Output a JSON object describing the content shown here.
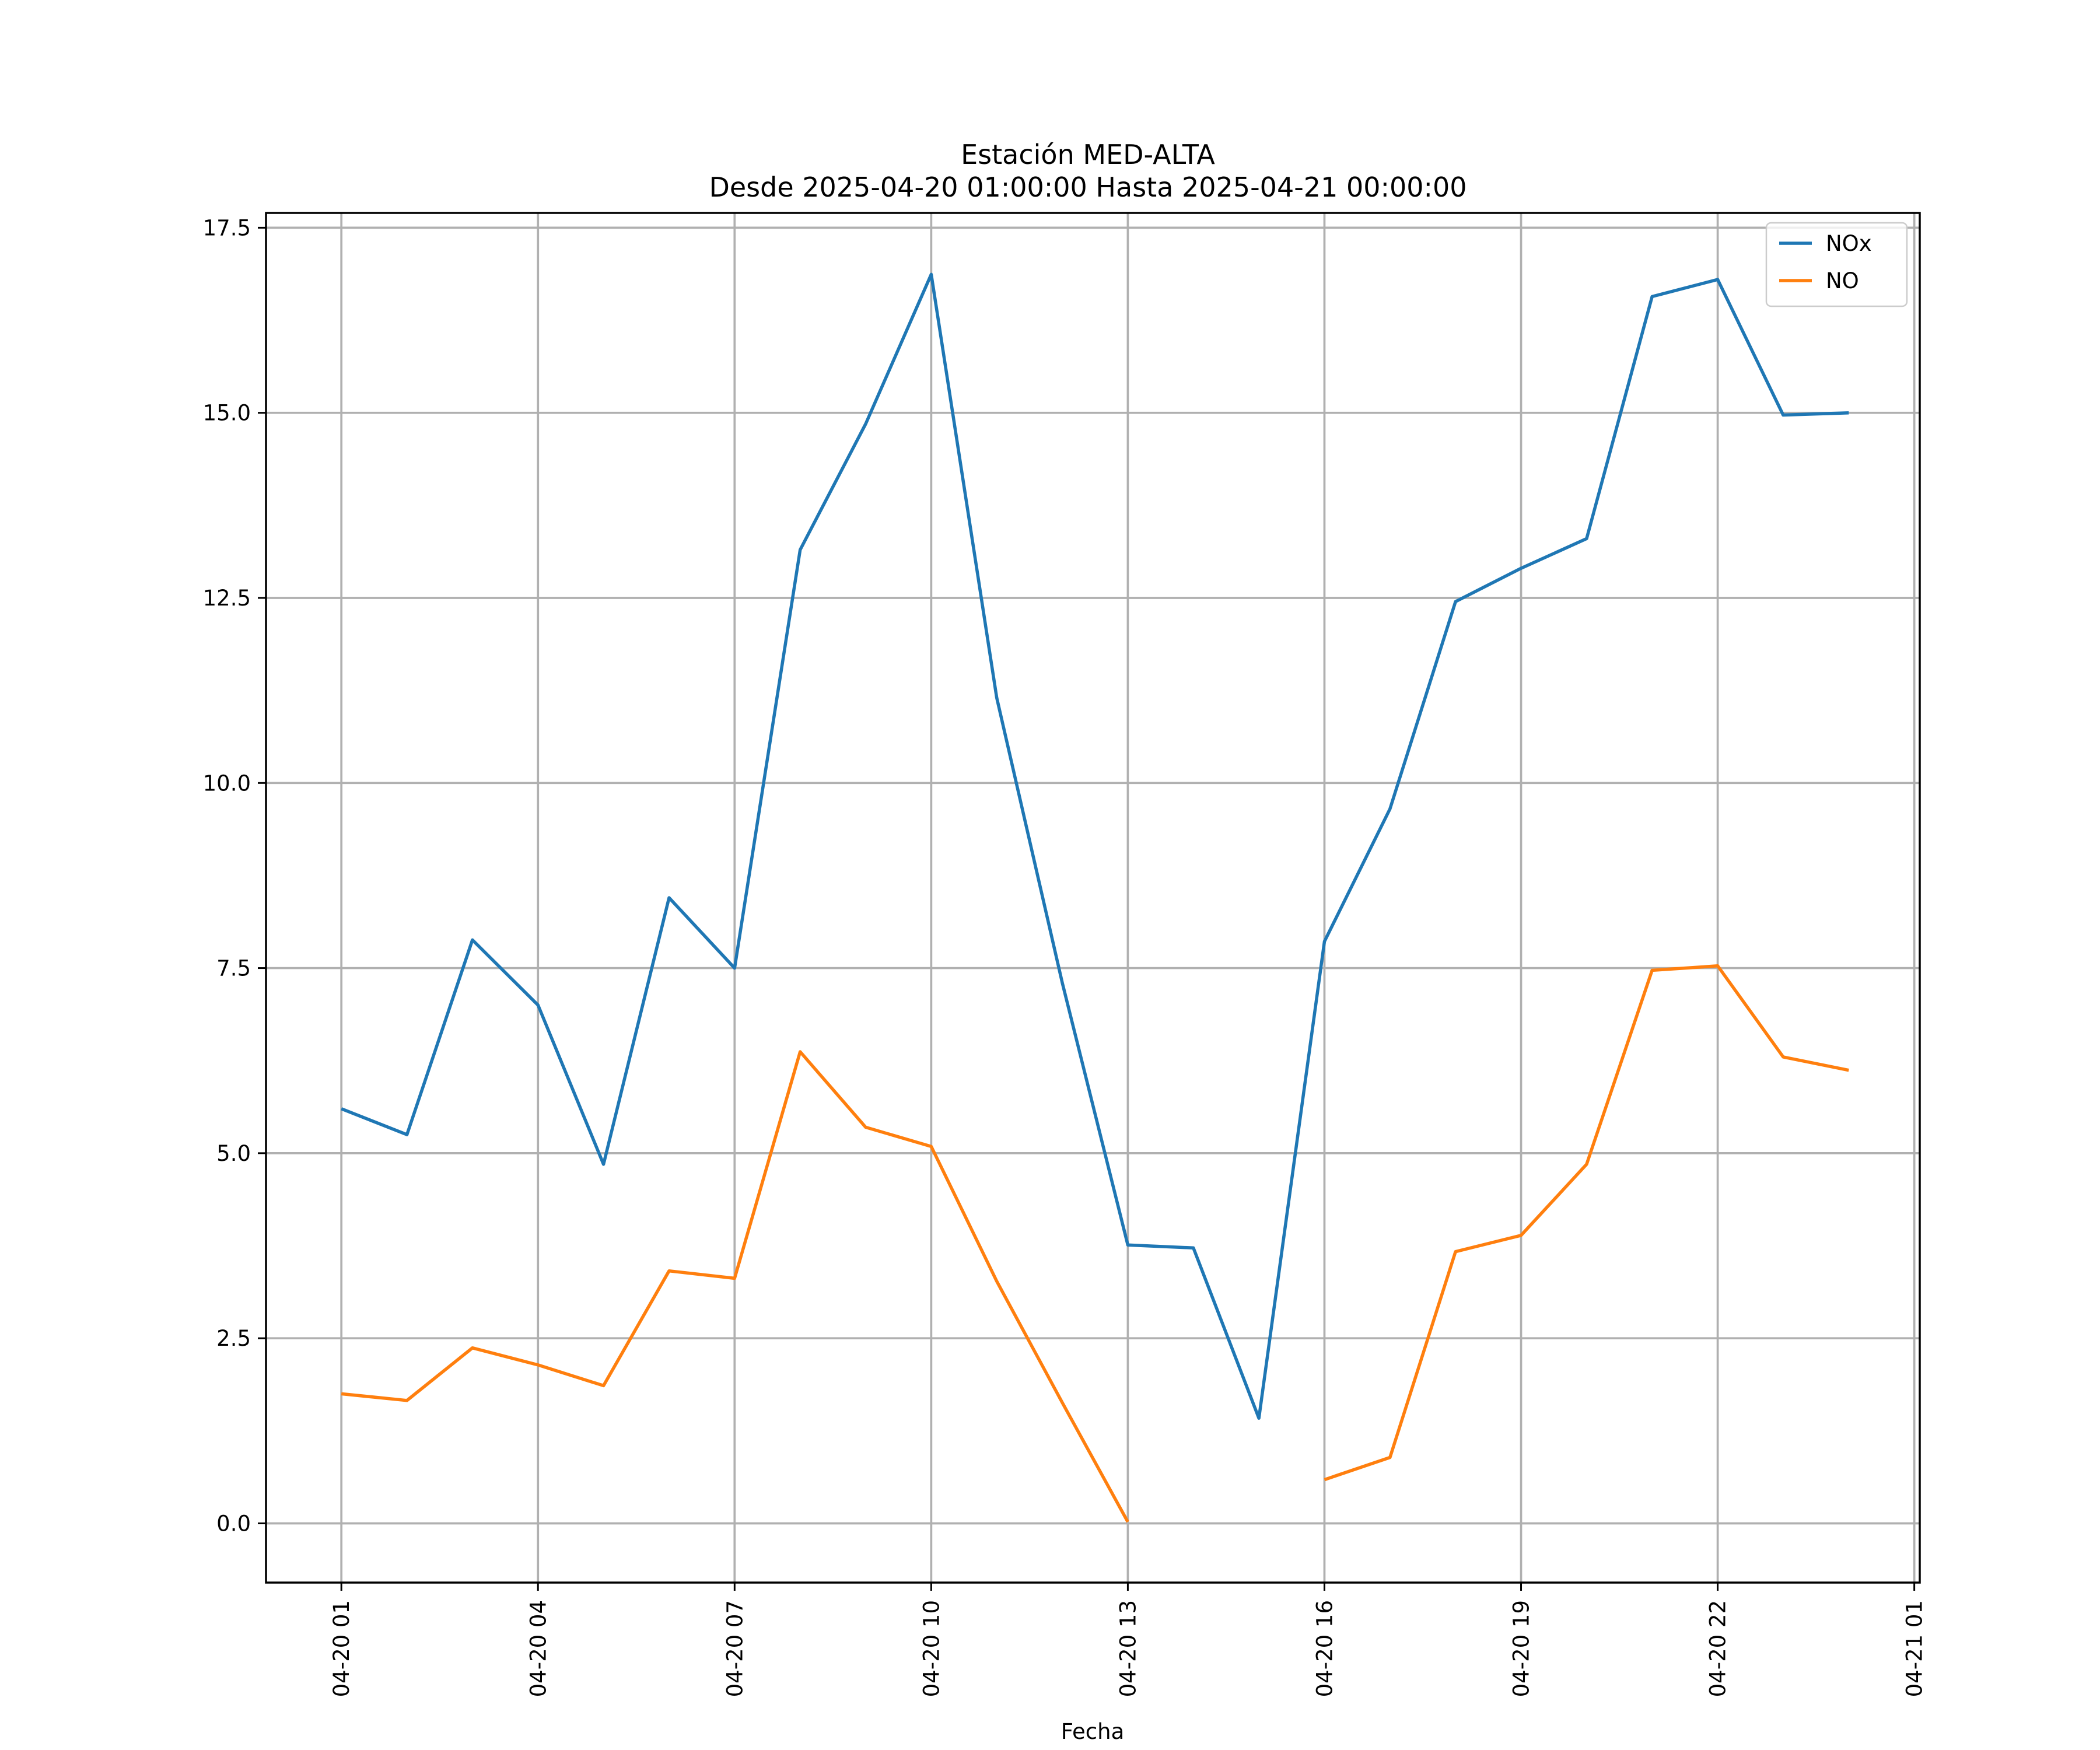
{
  "chart_data": {
    "type": "line",
    "title": "Estación MED-ALTA",
    "subtitle": "Desde 2025-04-20 01:00:00 Hasta 2025-04-21 00:00:00",
    "xlabel": "Fecha",
    "ylabel": "",
    "x": [
      "2025-04-20 01:00",
      "2025-04-20 02:00",
      "2025-04-20 03:00",
      "2025-04-20 04:00",
      "2025-04-20 05:00",
      "2025-04-20 06:00",
      "2025-04-20 07:00",
      "2025-04-20 08:00",
      "2025-04-20 09:00",
      "2025-04-20 10:00",
      "2025-04-20 11:00",
      "2025-04-20 12:00",
      "2025-04-20 13:00",
      "2025-04-20 14:00",
      "2025-04-20 15:00",
      "2025-04-20 16:00",
      "2025-04-20 17:00",
      "2025-04-20 18:00",
      "2025-04-20 19:00",
      "2025-04-20 20:00",
      "2025-04-20 21:00",
      "2025-04-20 22:00",
      "2025-04-20 23:00",
      "2025-04-21 00:00"
    ],
    "xlim": [
      "2025-04-19 23:51",
      "2025-04-21 01:05"
    ],
    "ylim": [
      -0.8,
      17.7
    ],
    "x_ticks": [
      "2025-04-20 01:00",
      "2025-04-20 04:00",
      "2025-04-20 07:00",
      "2025-04-20 10:00",
      "2025-04-20 13:00",
      "2025-04-20 16:00",
      "2025-04-20 19:00",
      "2025-04-20 22:00",
      "2025-04-21 01:00"
    ],
    "x_tick_labels": [
      "04-20 01",
      "04-20 04",
      "04-20 07",
      "04-20 10",
      "04-20 13",
      "04-20 16",
      "04-20 19",
      "04-20 22",
      "04-21 01"
    ],
    "y_ticks": [
      0.0,
      2.5,
      5.0,
      7.5,
      10.0,
      12.5,
      15.0,
      17.5
    ],
    "y_tick_labels": [
      "0.0",
      "2.5",
      "5.0",
      "7.5",
      "10.0",
      "12.5",
      "15.0",
      "17.5"
    ],
    "grid": true,
    "legend": "top-right",
    "series": [
      {
        "name": "NOx",
        "color": "#1f77b4",
        "values": [
          5.6,
          5.25,
          7.88,
          7.0,
          4.85,
          8.45,
          7.5,
          13.15,
          14.85,
          16.87,
          11.15,
          7.3,
          3.76,
          3.72,
          1.42,
          7.86,
          9.65,
          12.45,
          12.9,
          13.3,
          16.57,
          16.8,
          14.97,
          15.0
        ]
      },
      {
        "name": "NO",
        "color": "#ff7f0e",
        "values": [
          1.75,
          1.66,
          2.37,
          2.14,
          1.86,
          3.41,
          3.31,
          6.37,
          5.35,
          5.09,
          3.27,
          1.63,
          0.02,
          null,
          null,
          0.59,
          0.89,
          3.67,
          3.89,
          4.85,
          7.47,
          7.53,
          6.3,
          6.12
        ]
      }
    ]
  }
}
